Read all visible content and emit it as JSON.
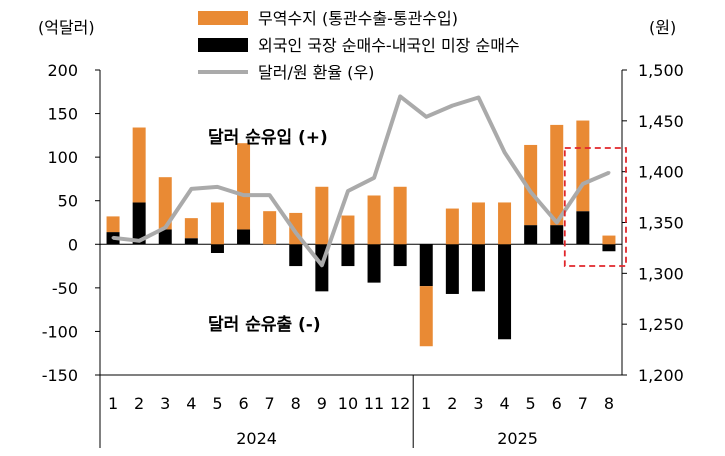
{
  "chart_data": {
    "type": "bar",
    "title": "",
    "left_axis_unit": "(억달러)",
    "right_axis_unit": "(원)",
    "left_ylim": [
      -150,
      200
    ],
    "left_yticks": [
      "200",
      "150",
      "100",
      "50",
      "0",
      "-50",
      "-100",
      "-150"
    ],
    "left_ytick_values": [
      200,
      150,
      100,
      50,
      0,
      -50,
      -100,
      -150
    ],
    "right_ylim": [
      1200,
      1500
    ],
    "right_yticks": [
      "1,500",
      "1,450",
      "1,400",
      "1,350",
      "1,300",
      "1,250",
      "1,200"
    ],
    "right_ytick_values": [
      1500,
      1450,
      1400,
      1350,
      1300,
      1250,
      1200
    ],
    "categories": [
      "1",
      "2",
      "3",
      "4",
      "5",
      "6",
      "7",
      "8",
      "9",
      "10",
      "11",
      "12",
      "1",
      "2",
      "3",
      "4",
      "5",
      "6",
      "7",
      "8"
    ],
    "years": [
      {
        "label": "2024",
        "start": 0,
        "end": 11
      },
      {
        "label": "2025",
        "start": 12,
        "end": 19
      }
    ],
    "series": [
      {
        "name": "무역수지 (통관수출-통관수입)",
        "kind": "bar",
        "color": "#E98A34",
        "values": [
          18,
          86,
          60,
          23,
          48,
          99,
          38,
          36,
          66,
          33,
          56,
          66,
          -69,
          41,
          48,
          48,
          92,
          115,
          104,
          10
        ]
      },
      {
        "name": "외국인 국장 순매수-내국인 미장 순매수",
        "kind": "bar",
        "color": "#000000",
        "values": [
          14,
          48,
          17,
          7,
          -10,
          17,
          0,
          -25,
          -54,
          -25,
          -44,
          -25,
          -48,
          -57,
          -54,
          -109,
          22,
          22,
          38,
          -8
        ]
      },
      {
        "name": "달러/원 환율 (우)",
        "kind": "line",
        "axis": "right",
        "color": "#AAAAAA",
        "values": [
          1335,
          1332,
          1345,
          1383,
          1385,
          1377,
          1377,
          1340,
          1308,
          1381,
          1394,
          1474,
          1454,
          1465,
          1473,
          1419,
          1380,
          1350,
          1388,
          1399
        ]
      }
    ],
    "annotations": {
      "inflow": "달러 순유입 (+)",
      "outflow": "달러 순유출 (-)"
    },
    "highlight": {
      "from": 18,
      "to": 19,
      "style": "dashed",
      "color": "#E0262B"
    },
    "legend_position": "top-center",
    "grid": false
  }
}
